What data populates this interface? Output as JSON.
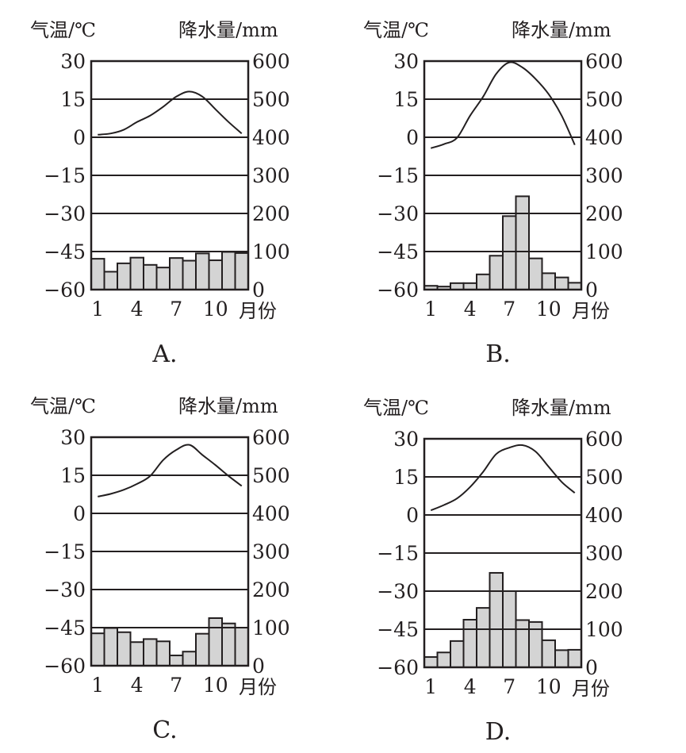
{
  "chart_data": [
    {
      "type": "bar+line",
      "caption": "A.",
      "left_axis_label": "气温/℃",
      "right_axis_label": "降水量/mm",
      "x_axis_label": "月份",
      "temp_ylim": [
        -60,
        30
      ],
      "precip_ylim": [
        0,
        600
      ],
      "temp_ticks": [
        "30",
        "15",
        "0",
        "−15",
        "−30",
        "−45",
        "−60"
      ],
      "precip_ticks": [
        "600",
        "500",
        "400",
        "300",
        "200",
        "100",
        "0"
      ],
      "x_ticks": [
        "1",
        "4",
        "7",
        "10"
      ],
      "months": [
        1,
        2,
        3,
        4,
        5,
        6,
        7,
        8,
        9,
        10,
        11,
        12
      ],
      "temperature": [
        1,
        1.5,
        3,
        6,
        8.5,
        12,
        16,
        18,
        16,
        11,
        6,
        1.5
      ],
      "precipitation": [
        81,
        47,
        69,
        84,
        65,
        58,
        83,
        76,
        95,
        77,
        99,
        96
      ]
    },
    {
      "type": "bar+line",
      "caption": "B.",
      "left_axis_label": "气温/℃",
      "right_axis_label": "降水量/mm",
      "x_axis_label": "月份",
      "temp_ylim": [
        -60,
        30
      ],
      "precip_ylim": [
        0,
        600
      ],
      "temp_ticks": [
        "30",
        "15",
        "0",
        "−15",
        "−30",
        "−45",
        "−60"
      ],
      "precip_ticks": [
        "600",
        "500",
        "400",
        "300",
        "200",
        "100",
        "0"
      ],
      "x_ticks": [
        "1",
        "4",
        "7",
        "10"
      ],
      "months": [
        1,
        2,
        3,
        4,
        5,
        6,
        7,
        8,
        9,
        10,
        11,
        12
      ],
      "temperature": [
        -4.3,
        -2.7,
        -0.2,
        8.5,
        16,
        25,
        29.5,
        27.5,
        23,
        17,
        8.5,
        -3
      ],
      "precipitation": [
        10,
        8,
        17,
        17,
        40,
        89,
        193,
        245,
        82,
        43,
        32,
        18
      ]
    },
    {
      "type": "bar+line",
      "caption": "C.",
      "left_axis_label": "气温/℃",
      "right_axis_label": "降水量/mm",
      "x_axis_label": "月份",
      "temp_ylim": [
        -60,
        30
      ],
      "precip_ylim": [
        0,
        600
      ],
      "temp_ticks": [
        "30",
        "15",
        "0",
        "−15",
        "−30",
        "−45",
        "−60"
      ],
      "precip_ticks": [
        "600",
        "500",
        "400",
        "300",
        "200",
        "100",
        "0"
      ],
      "x_ticks": [
        "1",
        "4",
        "7",
        "10"
      ],
      "months": [
        1,
        2,
        3,
        4,
        5,
        6,
        7,
        8,
        9,
        10,
        11,
        12
      ],
      "temperature": [
        6.6,
        7.7,
        9.3,
        11.6,
        14.7,
        21,
        25,
        27,
        23,
        19,
        14.7,
        10.8
      ],
      "precipitation": [
        85,
        99,
        88,
        62,
        70,
        64,
        27,
        37,
        84,
        125,
        111,
        100
      ]
    },
    {
      "type": "bar+line",
      "caption": "D.",
      "left_axis_label": "气温/℃",
      "right_axis_label": "降水量/mm",
      "x_axis_label": "月份",
      "temp_ylim": [
        -60,
        30
      ],
      "precip_ylim": [
        0,
        600
      ],
      "temp_ticks": [
        "30",
        "15",
        "0",
        "−15",
        "−30",
        "−45",
        "−60"
      ],
      "precip_ticks": [
        "600",
        "500",
        "400",
        "300",
        "200",
        "100",
        "0"
      ],
      "x_ticks": [
        "1",
        "4",
        "7",
        "10"
      ],
      "months": [
        1,
        2,
        3,
        4,
        5,
        6,
        7,
        8,
        9,
        10,
        11,
        12
      ],
      "temperature": [
        1.8,
        3.9,
        6.5,
        11,
        17,
        24,
        26.5,
        27.5,
        25,
        19,
        13,
        8.7
      ],
      "precipitation": [
        27,
        39,
        69,
        125,
        156,
        248,
        200,
        124,
        119,
        71,
        45,
        46
      ]
    }
  ],
  "colors": {
    "bar_fill": "#d4d4d4",
    "ink": "#231f20"
  }
}
